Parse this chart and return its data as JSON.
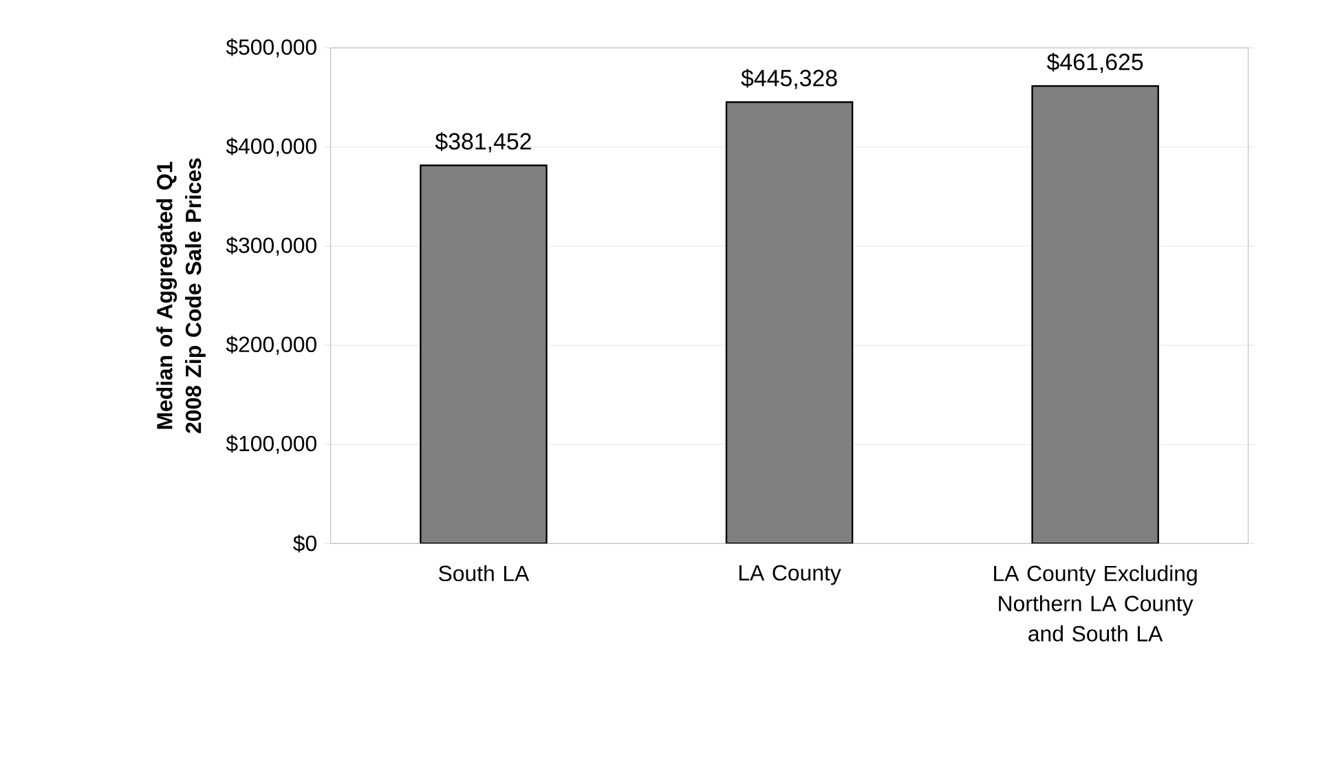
{
  "chart_data": {
    "type": "bar",
    "ylabel": "Median of Aggregated Q1 2008 Zip Code Sale Prices",
    "categories": [
      "South LA",
      "LA County",
      "LA County Excluding Northern LA County and South LA"
    ],
    "values": [
      381452,
      445328,
      461625
    ],
    "value_labels": [
      "$381,452",
      "$445,328",
      "$461,625"
    ],
    "color": "#808080",
    "ylim": [
      0,
      500000
    ],
    "yticks": [
      {
        "value": 0,
        "label": "$0"
      },
      {
        "value": 100000,
        "label": "$100,000"
      },
      {
        "value": 200000,
        "label": "$200,000"
      },
      {
        "value": 300000,
        "label": "$300,000"
      },
      {
        "value": 400000,
        "label": "$400,000"
      },
      {
        "value": 500000,
        "label": "$500,000"
      }
    ],
    "grid": "y"
  }
}
